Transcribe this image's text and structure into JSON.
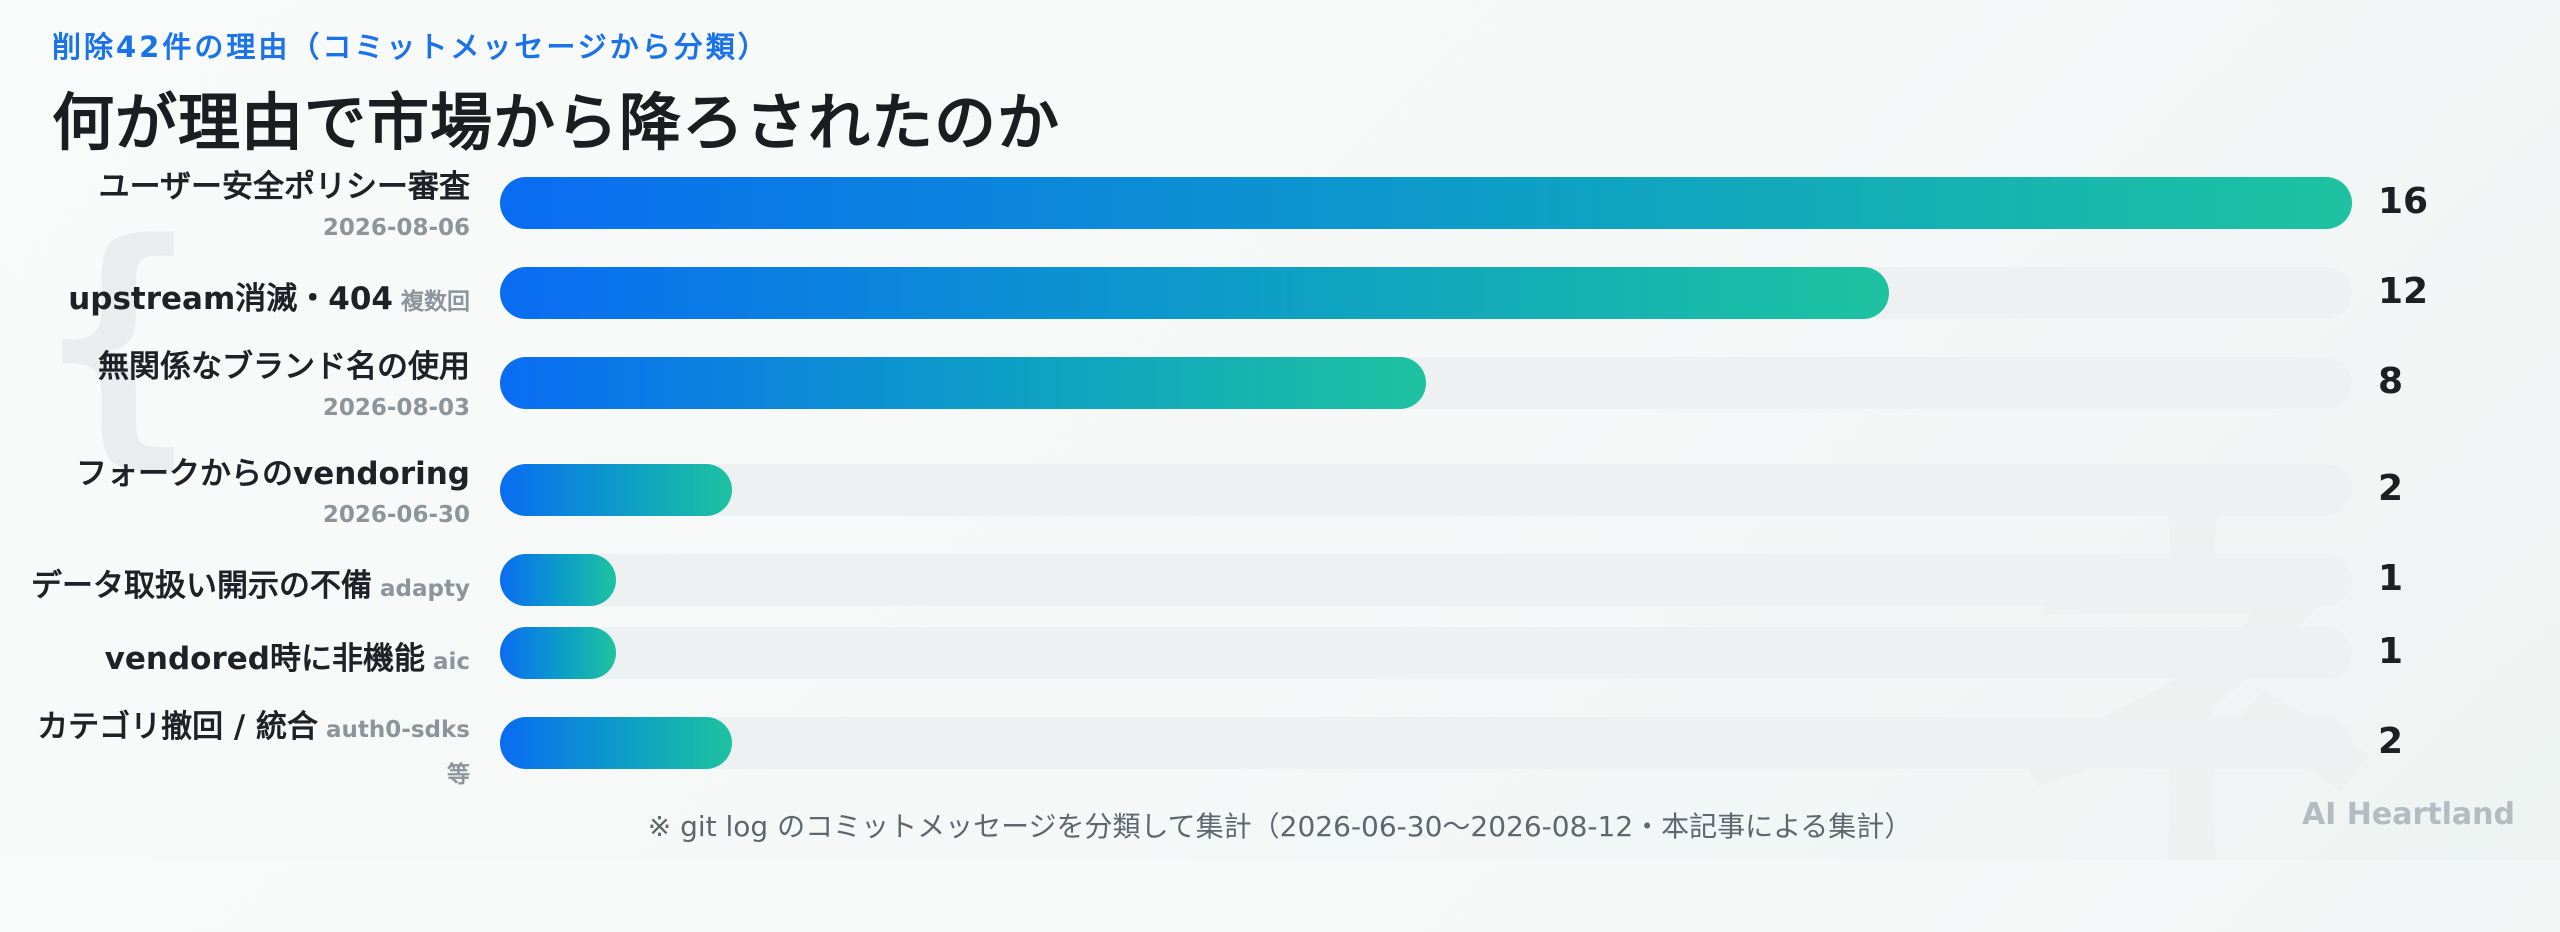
{
  "header": {
    "subtitle": "削除42件の理由（コミットメッセージから分類）",
    "title": "何が理由で市場から降ろされたのか"
  },
  "chart_data": {
    "type": "bar",
    "orientation": "horizontal",
    "categories": [
      "ユーザー安全ポリシー審査",
      "upstream消滅・404",
      "無関係なブランド名の使用",
      "フォークからのvendoring",
      "データ取扱い開示の不備",
      "vendored時に非機能",
      "カテゴリ撤回 / 統合"
    ],
    "notes": [
      "2026-08-06",
      "複数回",
      "2026-08-03",
      "2026-06-30",
      "adapty",
      "aic",
      "auth0-sdks 等"
    ],
    "values": [
      16,
      12,
      8,
      2,
      1,
      1,
      2
    ],
    "xlim": [
      0,
      16
    ],
    "colors": {
      "bar_start": "#0a6cf2",
      "bar_end": "#1ec2a0",
      "track": "#eef1f2"
    }
  },
  "footer": "※ git log のコミットメッセージを分類して集計（2026-06-30〜2026-08-12・本記事による集計）",
  "brand": "AI Heartland"
}
